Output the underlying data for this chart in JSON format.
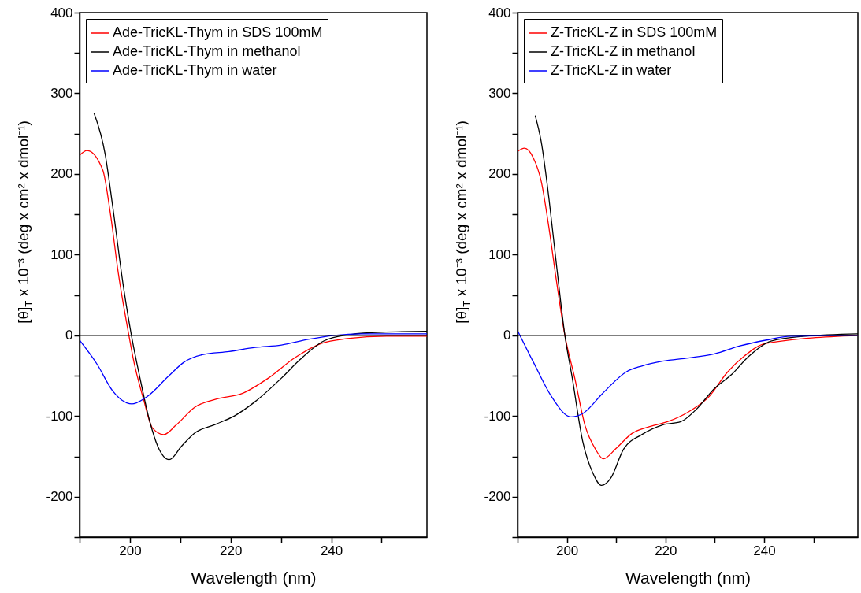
{
  "chart_data": [
    {
      "type": "line",
      "xlabel": "Wavelength (nm)",
      "ylabel": "[θ]$_{T}$ x 10⁻³ (deg x cm² x dmol⁻¹)",
      "xlim": [
        190,
        259
      ],
      "ylim": [
        -250,
        400
      ],
      "xticks": [
        {
          "value": 190,
          "label": null
        },
        200,
        {
          "value": 210,
          "label": null
        },
        220,
        {
          "value": 230,
          "label": null
        },
        240,
        {
          "value": 250,
          "label": null
        }
      ],
      "yticks": [
        {
          "value": -250,
          "label": null
        },
        -200,
        {
          "value": -150,
          "label": null
        },
        -100,
        {
          "value": -50,
          "label": null
        },
        0,
        {
          "value": 50,
          "label": null
        },
        100,
        {
          "value": 150,
          "label": null
        },
        200,
        {
          "value": 250,
          "label": null
        },
        300,
        {
          "value": 350,
          "label": null
        },
        400
      ],
      "legend": "top left",
      "ref_lines": [
        {
          "axis": "y",
          "value": 0,
          "color": "#000000"
        }
      ],
      "series": [
        {
          "name": "Ade-TricKL-Thym in SDS 100mM",
          "color": "#ff0000",
          "x": [
            190,
            191.5,
            194.6,
            196.1,
            197.7,
            199.8,
            200.6,
            202.7,
            204.5,
            206.7,
            209.2,
            212.9,
            217.1,
            222.3,
            227.5,
            232.7,
            238,
            243.2,
            251,
            259
          ],
          "values": [
            223,
            229,
            205,
            152,
            77,
            0,
            -27,
            -79,
            -115,
            -123,
            -111,
            -89,
            -79,
            -72,
            -53,
            -28,
            -10,
            -4,
            -1,
            -1
          ]
        },
        {
          "name": "Ade-TricKL-Thym in methanol",
          "color": "#000000",
          "x": [
            192.9,
            195.1,
            196.6,
            198.7,
            200.3,
            201.9,
            204,
            205.5,
            207.8,
            210.3,
            212.9,
            217.1,
            220.7,
            224.9,
            230.1,
            233.8,
            238.5,
            243.7,
            250,
            259
          ],
          "values": [
            275,
            224,
            159,
            61,
            0,
            -50,
            -108,
            -137,
            -154,
            -137,
            -121,
            -110,
            -100,
            -82,
            -53,
            -30,
            -7,
            1,
            4,
            5
          ]
        },
        {
          "name": "Ade-TricKL-Thym in water",
          "color": "#0000ff",
          "x": [
            190,
            193.5,
            196.6,
            200.4,
            203.4,
            207.6,
            210.8,
            214.4,
            219.7,
            224.9,
            230.1,
            235.4,
            240.6,
            245.8,
            259
          ],
          "values": [
            -6,
            -36,
            -69,
            -85,
            -76,
            -51,
            -33,
            -24,
            -20,
            -15,
            -12,
            -5,
            0,
            2,
            2
          ]
        }
      ]
    },
    {
      "type": "line",
      "xlabel": "Wavelength (nm)",
      "ylabel": "[θ]$_{T}$ x 10⁻³ (deg x cm² x dmol⁻¹)",
      "xlim": [
        190,
        259
      ],
      "ylim": [
        -250,
        400
      ],
      "xticks": [
        {
          "value": 190,
          "label": null
        },
        200,
        {
          "value": 210,
          "label": null
        },
        220,
        {
          "value": 230,
          "label": null
        },
        240,
        {
          "value": 250,
          "label": null
        }
      ],
      "yticks": [
        {
          "value": -250,
          "label": null
        },
        -200,
        {
          "value": -150,
          "label": null
        },
        -100,
        {
          "value": -50,
          "label": null
        },
        0,
        {
          "value": 50,
          "label": null
        },
        100,
        {
          "value": 150,
          "label": null
        },
        200,
        {
          "value": 250,
          "label": null
        },
        300,
        {
          "value": 350,
          "label": null
        },
        400
      ],
      "legend": "top left",
      "ref_lines": [
        {
          "axis": "y",
          "value": 0,
          "color": "#000000"
        }
      ],
      "series": [
        {
          "name": "Z-TricKL-Z in SDS 100mM",
          "color": "#ff0000",
          "x": [
            190,
            191.4,
            193.2,
            194.8,
            196.4,
            197.9,
            199.6,
            201.6,
            203.7,
            205.8,
            207.4,
            210,
            213.1,
            216.8,
            220.4,
            224.6,
            228.8,
            232.5,
            236.1,
            240.3,
            259
          ],
          "values": [
            228,
            232,
            220,
            191,
            132,
            67,
            0,
            -53,
            -112,
            -141,
            -153,
            -140,
            -122,
            -113,
            -107,
            -95,
            -76,
            -46,
            -25,
            -10,
            0
          ]
        },
        {
          "name": "Z-TricKL-Z in methanol",
          "color": "#000000",
          "x": [
            193.6,
            194.8,
            196.4,
            197.9,
            199.6,
            201.1,
            203.2,
            205.3,
            207,
            208.9,
            211.5,
            215.2,
            219.4,
            223.1,
            226.2,
            229.9,
            233.5,
            236.7,
            241.4,
            248.2,
            259
          ],
          "values": [
            272,
            240,
            168,
            87,
            0,
            -53,
            -131,
            -171,
            -186,
            -177,
            -141,
            -123,
            -111,
            -107,
            -92,
            -66,
            -48,
            -27,
            -7,
            -1,
            2
          ]
        },
        {
          "name": "Z-TricKL-Z in water",
          "color": "#0000ff",
          "x": [
            190,
            193.2,
            196.9,
            200.8,
            203.2,
            207.4,
            212.1,
            215.2,
            219.4,
            224.6,
            229.9,
            235.1,
            240.3,
            245.5,
            259
          ],
          "values": [
            6,
            -33,
            -76,
            -101,
            -97,
            -71,
            -45,
            -38,
            -32,
            -28,
            -23,
            -13,
            -6,
            -1,
            0
          ]
        }
      ]
    }
  ]
}
